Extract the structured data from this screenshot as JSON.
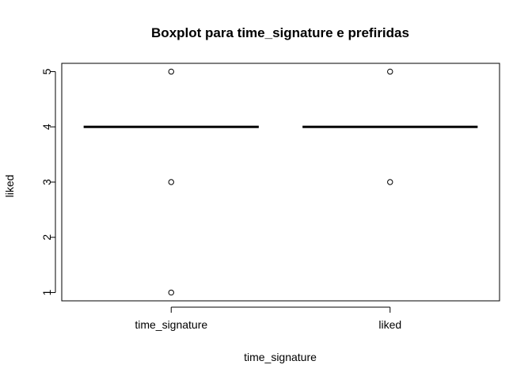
{
  "chart_data": {
    "type": "boxplot",
    "title": "Boxplot para  time_signature e prefiridas",
    "xlabel": "time_signature",
    "ylabel": "liked",
    "ylim": [
      0.85,
      5.15
    ],
    "yticks": [
      1,
      2,
      3,
      4,
      5
    ],
    "grid": false,
    "categories": [
      "time_signature",
      "liked"
    ],
    "boxes": [
      {
        "category": "time_signature",
        "q1": 4,
        "median": 4,
        "q3": 4,
        "whisker_low": 4,
        "whisker_high": 4,
        "outliers": [
          1,
          3,
          5
        ]
      },
      {
        "category": "liked",
        "q1": 4,
        "median": 4,
        "q3": 4,
        "whisker_low": 4,
        "whisker_high": 4,
        "outliers": [
          3,
          5
        ]
      }
    ]
  }
}
